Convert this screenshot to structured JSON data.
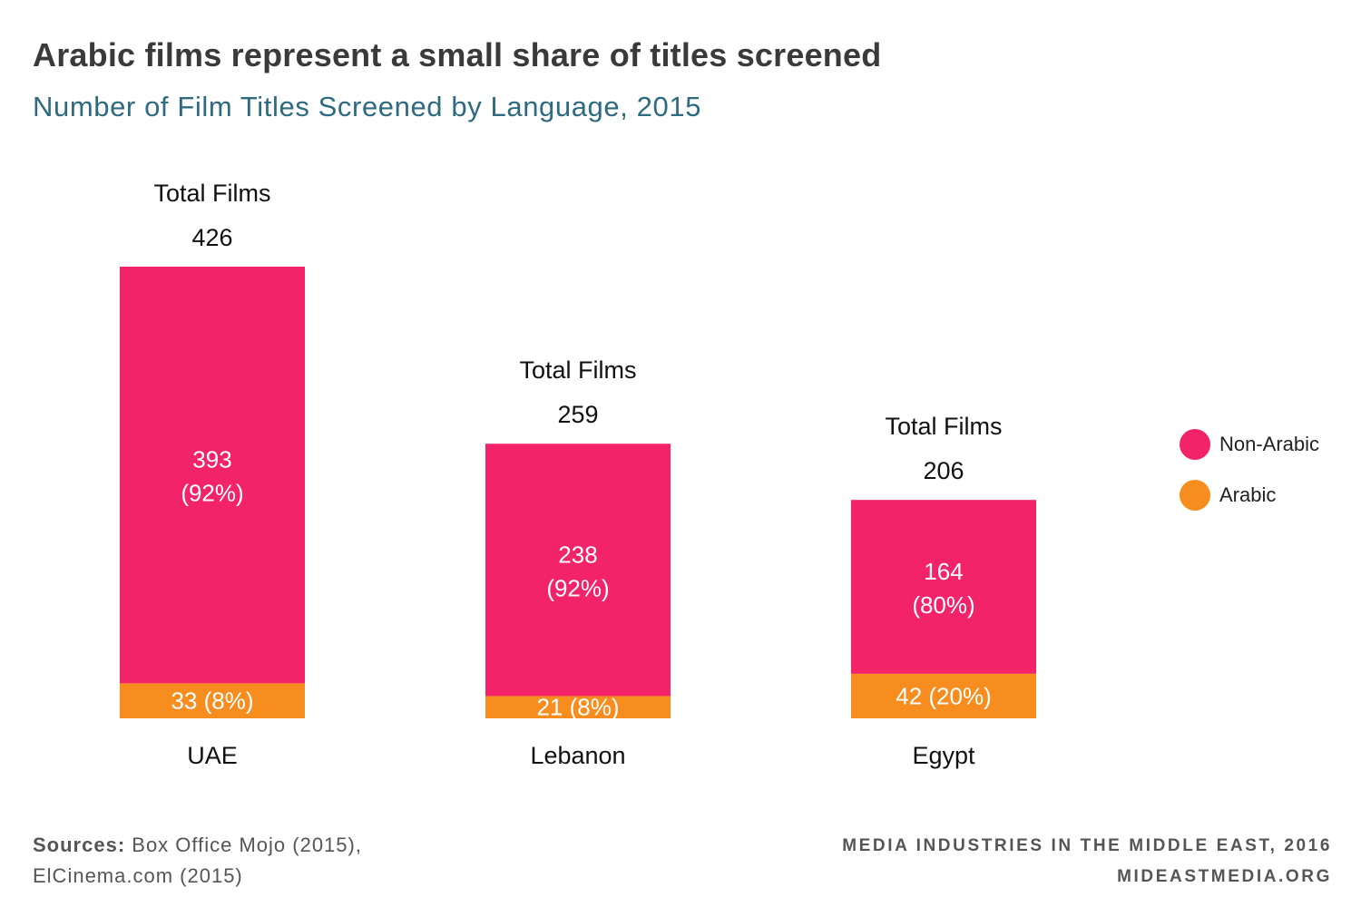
{
  "header": {
    "title": "Arabic films represent a small share of titles screened",
    "subtitle": "Number of Film Titles Screened by Language, 2015"
  },
  "chart_data": {
    "type": "bar",
    "stacked": true,
    "categories": [
      "UAE",
      "Lebanon",
      "Egypt"
    ],
    "series": [
      {
        "name": "Arabic",
        "values": [
          33,
          21,
          42
        ],
        "labels": [
          "33 (8%)",
          "21 (8%)",
          "42 (20%)"
        ],
        "color": "#f78d1e"
      },
      {
        "name": "Non-Arabic",
        "values": [
          393,
          238,
          164
        ],
        "percent_labels": [
          "(92%)",
          "(92%)",
          "(80%)"
        ],
        "color": "#f3236a"
      }
    ],
    "total_label": "Total Films",
    "totals": [
      426,
      259,
      206
    ],
    "ylim": [
      0,
      426
    ],
    "grid": false,
    "legend": "right"
  },
  "legend": {
    "items": [
      {
        "label": "Non-Arabic",
        "color": "#f3236a"
      },
      {
        "label": "Arabic",
        "color": "#f78d1e"
      }
    ]
  },
  "footer": {
    "sources_label": "Sources:",
    "sources_line1": " Box Office Mojo (2015),",
    "sources_line2": "ElCinema.com (2015)",
    "credit_line1": "MEDIA INDUSTRIES IN THE MIDDLE EAST, 2016",
    "credit_line2": "MIDEASTMEDIA.ORG"
  }
}
